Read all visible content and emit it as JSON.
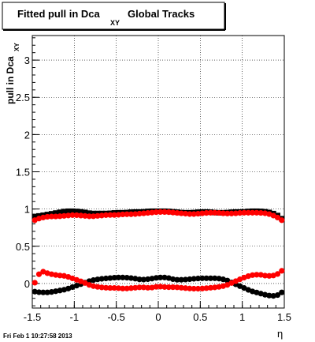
{
  "chart_data": {
    "type": "scatter",
    "title_main": "Fitted pull in Dca",
    "title_sub": "XY",
    "title_tail": "Global Tracks",
    "ylabel_main": "pull in Dca",
    "ylabel_sub": "XY",
    "xlabel": "η",
    "timestamp": "Fri Feb  1 10:27:58 2013",
    "xlim": [
      -1.5,
      1.5
    ],
    "ylim": [
      -0.33,
      3.33
    ],
    "x_ticks": [
      {
        "v": -1.5,
        "label": "-1.5"
      },
      {
        "v": -1.0,
        "label": "-1"
      },
      {
        "v": -0.5,
        "label": "-0.5"
      },
      {
        "v": 0.0,
        "label": "0"
      },
      {
        "v": 0.5,
        "label": "0.5"
      },
      {
        "v": 1.0,
        "label": "1"
      },
      {
        "v": 1.5,
        "label": "1.5"
      }
    ],
    "y_ticks": [
      {
        "v": 0.0,
        "label": "0"
      },
      {
        "v": 0.5,
        "label": "0.5"
      },
      {
        "v": 1.0,
        "label": "1"
      },
      {
        "v": 1.5,
        "label": "1.5"
      },
      {
        "v": 2.0,
        "label": "2"
      },
      {
        "v": 2.5,
        "label": "2.5"
      },
      {
        "v": 3.0,
        "label": "3"
      }
    ],
    "grid": true,
    "series": [
      {
        "marker": "square",
        "color": "#000000",
        "x": [
          -1.47,
          -1.4,
          -1.3,
          -1.2,
          -1.1,
          -1.0,
          -0.9,
          -0.8,
          -0.7,
          -0.6,
          -0.5,
          -0.4,
          -0.3,
          -0.2,
          -0.1,
          0.0,
          0.1,
          0.2,
          0.3,
          0.4,
          0.5,
          0.6,
          0.7,
          0.8,
          0.9,
          1.0,
          1.1,
          1.2,
          1.3,
          1.4,
          1.47
        ],
        "y": [
          0.9,
          0.91,
          0.93,
          0.95,
          0.97,
          0.97,
          0.96,
          0.94,
          0.94,
          0.94,
          0.95,
          0.95,
          0.96,
          0.96,
          0.97,
          0.97,
          0.97,
          0.96,
          0.95,
          0.95,
          0.96,
          0.96,
          0.95,
          0.95,
          0.96,
          0.96,
          0.97,
          0.97,
          0.96,
          0.93,
          0.87
        ]
      },
      {
        "marker": "circle",
        "color": "#ff0000",
        "x": [
          -1.47,
          -1.4,
          -1.3,
          -1.2,
          -1.1,
          -1.0,
          -0.9,
          -0.8,
          -0.7,
          -0.6,
          -0.5,
          -0.4,
          -0.3,
          -0.2,
          -0.1,
          0.0,
          0.1,
          0.2,
          0.3,
          0.4,
          0.5,
          0.6,
          0.7,
          0.8,
          0.9,
          1.0,
          1.1,
          1.2,
          1.3,
          1.4,
          1.47
        ],
        "y": [
          0.85,
          0.88,
          0.9,
          0.9,
          0.91,
          0.92,
          0.91,
          0.9,
          0.91,
          0.92,
          0.92,
          0.93,
          0.93,
          0.94,
          0.95,
          0.96,
          0.96,
          0.95,
          0.94,
          0.93,
          0.94,
          0.95,
          0.95,
          0.94,
          0.94,
          0.95,
          0.95,
          0.95,
          0.94,
          0.9,
          0.85
        ]
      },
      {
        "marker": "circle",
        "color": "#000000",
        "x": [
          -1.47,
          -1.4,
          -1.3,
          -1.2,
          -1.1,
          -1.0,
          -0.9,
          -0.8,
          -0.7,
          -0.6,
          -0.5,
          -0.4,
          -0.3,
          -0.2,
          -0.1,
          0.0,
          0.1,
          0.2,
          0.3,
          0.4,
          0.5,
          0.6,
          0.7,
          0.8,
          0.9,
          1.0,
          1.1,
          1.2,
          1.3,
          1.4,
          1.47
        ],
        "y": [
          -0.11,
          -0.12,
          -0.12,
          -0.1,
          -0.08,
          -0.04,
          0.0,
          0.04,
          0.06,
          0.07,
          0.08,
          0.08,
          0.07,
          0.05,
          0.06,
          0.08,
          0.08,
          0.05,
          0.05,
          0.06,
          0.07,
          0.07,
          0.07,
          0.05,
          0.0,
          -0.05,
          -0.1,
          -0.13,
          -0.16,
          -0.17,
          -0.12
        ]
      },
      {
        "marker": "circle",
        "color": "#ff0000",
        "x": [
          -1.47,
          -1.4,
          -1.3,
          -1.2,
          -1.1,
          -1.0,
          -0.9,
          -0.8,
          -0.7,
          -0.6,
          -0.5,
          -0.4,
          -0.3,
          -0.2,
          -0.1,
          0.0,
          0.1,
          0.2,
          0.3,
          0.4,
          0.5,
          0.6,
          0.7,
          0.8,
          0.9,
          1.0,
          1.1,
          1.2,
          1.3,
          1.4,
          1.47
        ],
        "y": [
          0.01,
          0.17,
          0.13,
          0.11,
          0.1,
          0.06,
          0.02,
          -0.03,
          -0.05,
          -0.06,
          -0.06,
          -0.07,
          -0.06,
          -0.05,
          -0.06,
          -0.04,
          -0.05,
          -0.05,
          -0.06,
          -0.07,
          -0.07,
          -0.06,
          -0.05,
          -0.03,
          0.02,
          0.07,
          0.11,
          0.12,
          0.1,
          0.11,
          0.17
        ]
      }
    ]
  }
}
